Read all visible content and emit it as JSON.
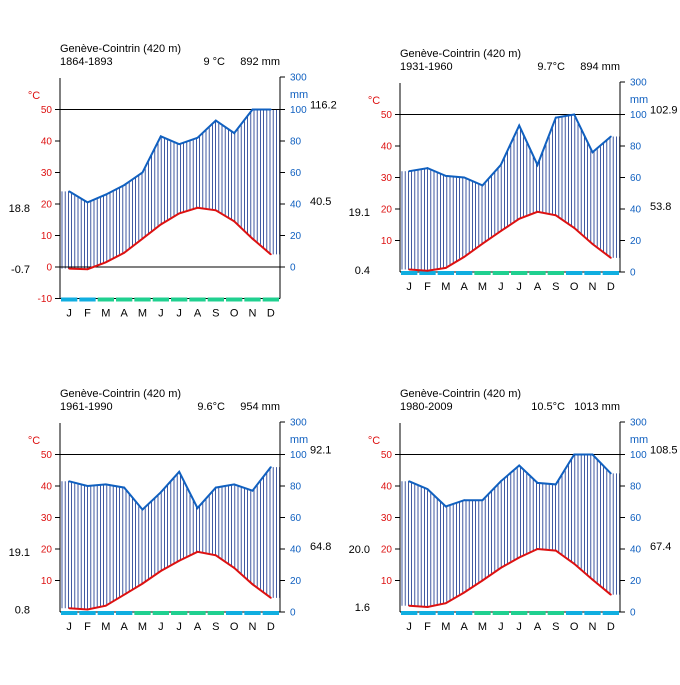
{
  "colors": {
    "temperature": "#dd1111",
    "precipitation": "#1060c0",
    "hatch": "#10308a",
    "frost_sure": "#10aee0",
    "frost_possible": "#20d090",
    "axis": "#000000"
  },
  "chart_data": [
    {
      "type": "line",
      "title": "Genève-Cointrin (420 m)",
      "period": "1864-1893",
      "mean_temp": "9 °C",
      "annual_precip": "892 mm",
      "temp_unit": "°C",
      "precip_unit": "mm",
      "months": [
        "J",
        "F",
        "M",
        "A",
        "M",
        "J",
        "J",
        "A",
        "S",
        "O",
        "N",
        "D"
      ],
      "temp_ticks": [
        "-10",
        "0",
        "10",
        "20",
        "30",
        "40",
        "50"
      ],
      "precip_ticks": [
        "0",
        "20",
        "40",
        "60",
        "80",
        "100",
        "300"
      ],
      "ylim_temp": [
        -10,
        60
      ],
      "show_zero_line": true,
      "frost": [
        "sure",
        "sure",
        "possible",
        "possible",
        "possible",
        "possible",
        "possible",
        "possible",
        "possible",
        "possible",
        "possible",
        "possible"
      ],
      "series": [
        {
          "unit": "°C",
          "values": [
            -0.5,
            -0.7,
            1.5,
            4.5,
            9.0,
            13.5,
            17.0,
            18.8,
            18.0,
            14.5,
            9.0,
            4.0
          ]
        },
        {
          "unit": "mm",
          "values": [
            48,
            41,
            46,
            52,
            60,
            83,
            78,
            82,
            93,
            85,
            100,
            100
          ]
        }
      ],
      "annotations": {
        "temp_max": "18.8",
        "temp_min": "-0.7",
        "precip_max": "116.2",
        "precip_min": "40.5"
      }
    },
    {
      "type": "line",
      "title": "Genève-Cointrin (420 m)",
      "period": "1931-1960",
      "mean_temp": "9.7°C",
      "annual_precip": "894 mm",
      "temp_unit": "°C",
      "precip_unit": "mm",
      "months": [
        "J",
        "F",
        "M",
        "A",
        "M",
        "J",
        "J",
        "A",
        "S",
        "O",
        "N",
        "D"
      ],
      "temp_ticks": [
        "10",
        "20",
        "30",
        "40",
        "50"
      ],
      "precip_ticks": [
        "0",
        "20",
        "40",
        "60",
        "80",
        "100",
        "300"
      ],
      "ylim_temp": [
        0,
        60
      ],
      "show_zero_line": false,
      "frost": [
        "sure",
        "sure",
        "sure",
        "sure",
        "possible",
        "possible",
        "possible",
        "possible",
        "possible",
        "sure",
        "sure",
        "sure"
      ],
      "series": [
        {
          "unit": "°C",
          "values": [
            0.8,
            0.4,
            1.3,
            4.8,
            9.0,
            13.0,
            16.9,
            19.1,
            18.0,
            14.0,
            8.9,
            4.5
          ]
        },
        {
          "unit": "mm",
          "values": [
            64,
            66,
            61,
            60,
            55,
            68,
            93,
            68,
            98,
            100,
            76,
            86
          ]
        }
      ],
      "annotations": {
        "temp_max": "19.1",
        "temp_min": "0.4",
        "precip_max": "102.9",
        "precip_min": "53.8"
      }
    },
    {
      "type": "line",
      "title": "Genève-Cointrin (420 m)",
      "period": "1961-1990",
      "mean_temp": "9.6°C",
      "annual_precip": "954 mm",
      "temp_unit": "°C",
      "precip_unit": "mm",
      "months": [
        "J",
        "F",
        "M",
        "A",
        "M",
        "J",
        "J",
        "A",
        "S",
        "O",
        "N",
        "D"
      ],
      "temp_ticks": [
        "10",
        "20",
        "30",
        "40",
        "50"
      ],
      "precip_ticks": [
        "0",
        "20",
        "40",
        "60",
        "80",
        "100",
        "300"
      ],
      "ylim_temp": [
        0,
        60
      ],
      "show_zero_line": false,
      "frost": [
        "sure",
        "sure",
        "sure",
        "sure",
        "possible",
        "possible",
        "possible",
        "possible",
        "possible",
        "sure",
        "sure",
        "sure"
      ],
      "series": [
        {
          "unit": "°C",
          "values": [
            1.2,
            0.8,
            2.0,
            5.5,
            9.0,
            13.0,
            16.3,
            19.1,
            18.0,
            14.0,
            8.8,
            4.5
          ]
        },
        {
          "unit": "mm",
          "values": [
            83,
            80,
            81,
            79,
            65,
            76,
            89,
            66,
            79,
            81,
            77,
            92
          ]
        }
      ],
      "annotations": {
        "temp_max": "19.1",
        "temp_min": "0.8",
        "precip_max": "92.1",
        "precip_min": "64.8"
      }
    },
    {
      "type": "line",
      "title": "Genève-Cointrin (420 m)",
      "period": "1980-2009",
      "mean_temp": "10.5°C",
      "annual_precip": "1013 mm",
      "temp_unit": "°C",
      "precip_unit": "mm",
      "months": [
        "J",
        "F",
        "M",
        "A",
        "M",
        "J",
        "J",
        "A",
        "S",
        "O",
        "N",
        "D"
      ],
      "temp_ticks": [
        "10",
        "20",
        "30",
        "40",
        "50"
      ],
      "precip_ticks": [
        "0",
        "20",
        "40",
        "60",
        "80",
        "100",
        "300"
      ],
      "ylim_temp": [
        0,
        60
      ],
      "show_zero_line": false,
      "frost": [
        "sure",
        "sure",
        "sure",
        "sure",
        "possible",
        "possible",
        "possible",
        "possible",
        "possible",
        "sure",
        "sure",
        "sure"
      ],
      "series": [
        {
          "unit": "°C",
          "values": [
            2.0,
            1.6,
            2.8,
            6.2,
            10.0,
            14.0,
            17.3,
            20.0,
            19.5,
            15.3,
            10.3,
            5.5
          ]
        },
        {
          "unit": "mm",
          "values": [
            83,
            78,
            67,
            71,
            71,
            83,
            93,
            82,
            81,
            100,
            101,
            88
          ]
        }
      ],
      "annotations": {
        "temp_max": "20.0",
        "temp_min": "1.6",
        "precip_max": "108.5",
        "precip_min": "67.4"
      }
    }
  ]
}
